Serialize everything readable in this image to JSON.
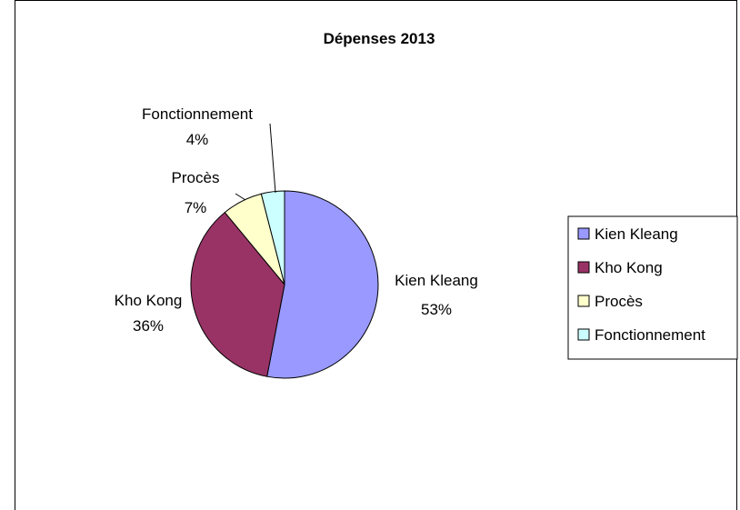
{
  "chart_data": {
    "type": "pie",
    "title": "Dépenses 2013",
    "categories": [
      "Kien Kleang",
      "Kho Kong",
      "Procès",
      "Fonctionnement"
    ],
    "values": [
      53,
      36,
      7,
      4
    ],
    "labels": [
      "53%",
      "36%",
      "7%",
      "4%"
    ],
    "colors": [
      "#9999ff",
      "#993366",
      "#ffffcc",
      "#ccffff"
    ],
    "legend_position": "right",
    "start_angle_deg": 0,
    "direction": "clockwise"
  }
}
